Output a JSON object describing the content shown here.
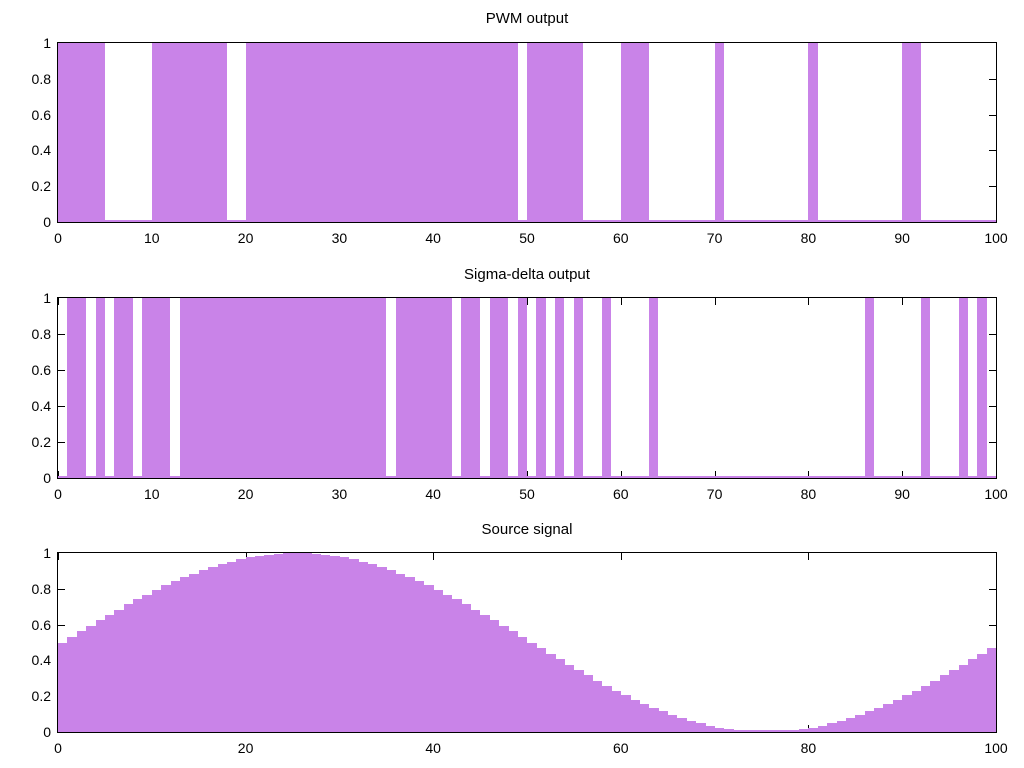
{
  "figure": {
    "background_color": "#ffffff",
    "fill_color": "#c983e8",
    "axis_color": "#000000",
    "font_color": "#000000"
  },
  "chart_data": [
    {
      "type": "bar",
      "title": "PWM output",
      "xlim": [
        0,
        100
      ],
      "ylim": [
        0,
        1
      ],
      "xtick_labels": [
        0,
        10,
        20,
        30,
        40,
        50,
        60,
        70,
        80,
        90,
        100
      ],
      "ytick_labels": [
        0,
        0.2,
        0.4,
        0.6,
        0.8,
        1
      ],
      "grid": false,
      "legend": null,
      "signal": "binary",
      "bar_value": 1,
      "on_intervals": [
        [
          0,
          5
        ],
        [
          10,
          18
        ],
        [
          20,
          49
        ],
        [
          50,
          56
        ],
        [
          60,
          63
        ],
        [
          70,
          71
        ],
        [
          80,
          81
        ],
        [
          90,
          92
        ]
      ]
    },
    {
      "type": "bar",
      "title": "Sigma-delta output",
      "xlim": [
        0,
        100
      ],
      "ylim": [
        0,
        1
      ],
      "xtick_labels": [
        0,
        10,
        20,
        30,
        40,
        50,
        60,
        70,
        80,
        90,
        100
      ],
      "ytick_labels": [
        0,
        0.2,
        0.4,
        0.6,
        0.8,
        1
      ],
      "grid": false,
      "legend": null,
      "signal": "binary",
      "bar_value": 1,
      "on_intervals": [
        [
          1,
          3
        ],
        [
          4,
          5
        ],
        [
          6,
          8
        ],
        [
          9,
          12
        ],
        [
          13,
          35
        ],
        [
          36,
          42
        ],
        [
          43,
          45
        ],
        [
          46,
          48
        ],
        [
          49,
          50
        ],
        [
          51,
          52
        ],
        [
          53,
          54
        ],
        [
          55,
          56
        ],
        [
          58,
          59
        ],
        [
          63,
          64
        ],
        [
          86,
          87
        ],
        [
          92,
          93
        ],
        [
          96,
          97
        ],
        [
          98,
          99
        ]
      ]
    },
    {
      "type": "bar",
      "title": "Source signal",
      "xlim": [
        0,
        100
      ],
      "ylim": [
        0,
        1
      ],
      "xtick_labels": [
        0,
        20,
        40,
        60,
        80,
        100
      ],
      "ytick_labels": [
        0,
        0.2,
        0.4,
        0.6,
        0.8,
        1
      ],
      "grid": false,
      "legend": null,
      "signal": "sampled sine, one box per sample",
      "box_width": 1,
      "x_start": 0,
      "values": [
        0.5,
        0.531,
        0.563,
        0.594,
        0.624,
        0.655,
        0.684,
        0.713,
        0.741,
        0.768,
        0.794,
        0.819,
        0.842,
        0.864,
        0.885,
        0.905,
        0.922,
        0.938,
        0.952,
        0.965,
        0.976,
        0.984,
        0.991,
        0.996,
        0.999,
        1,
        0.999,
        0.996,
        0.991,
        0.984,
        0.976,
        0.965,
        0.952,
        0.938,
        0.922,
        0.905,
        0.885,
        0.864,
        0.842,
        0.819,
        0.794,
        0.768,
        0.741,
        0.713,
        0.684,
        0.655,
        0.624,
        0.594,
        0.563,
        0.531,
        0.5,
        0.469,
        0.437,
        0.406,
        0.376,
        0.345,
        0.316,
        0.287,
        0.259,
        0.232,
        0.206,
        0.181,
        0.157,
        0.136,
        0.115,
        0.095,
        0.078,
        0.062,
        0.048,
        0.035,
        0.024,
        0.016,
        0.009,
        0.004,
        0.001,
        0,
        0.001,
        0.004,
        0.009,
        0.016,
        0.024,
        0.035,
        0.048,
        0.062,
        0.078,
        0.095,
        0.115,
        0.136,
        0.157,
        0.181,
        0.206,
        0.232,
        0.259,
        0.287,
        0.316,
        0.345,
        0.376,
        0.406,
        0.437,
        0.469
      ]
    }
  ]
}
